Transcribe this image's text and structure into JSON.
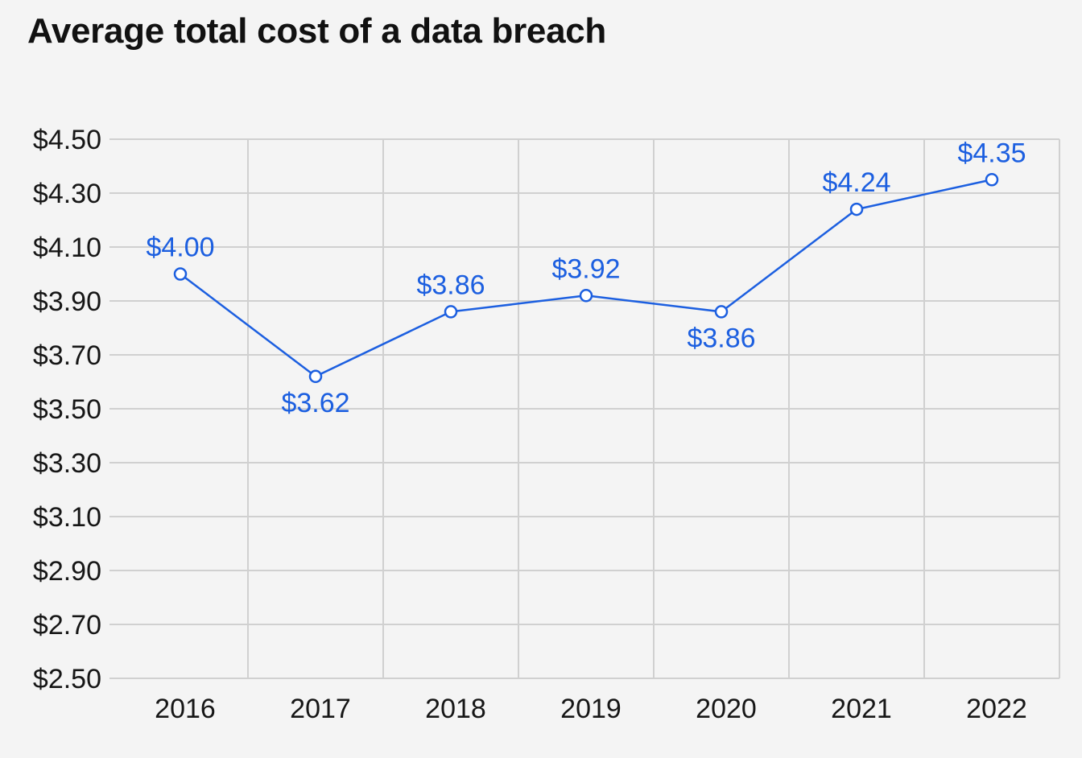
{
  "colors": {
    "background": "#f4f4f4",
    "grid": "#d0d0d0",
    "series": "#1c5fe0",
    "text": "#161616"
  },
  "chart_data": {
    "type": "line",
    "title": "Average total cost of a data breach",
    "xlabel": "",
    "ylabel": "",
    "categories": [
      "2016",
      "2017",
      "2018",
      "2019",
      "2020",
      "2021",
      "2022"
    ],
    "series": [
      {
        "values": [
          4.0,
          3.62,
          3.86,
          3.92,
          3.86,
          4.24,
          4.35
        ],
        "labels": [
          "$4.00",
          "$3.62",
          "$3.86",
          "$3.92",
          "$3.86",
          "$4.24",
          "$4.35"
        ],
        "label_positions": [
          "above",
          "below",
          "above",
          "above",
          "below",
          "above",
          "above"
        ]
      }
    ],
    "ylim": [
      2.5,
      4.5
    ],
    "y_ticks": [
      4.5,
      4.3,
      4.1,
      3.9,
      3.7,
      3.5,
      3.3,
      3.1,
      2.9,
      2.7,
      2.5
    ],
    "y_tick_labels": [
      "$4.50",
      "$4.30",
      "$4.10",
      "$3.90",
      "$3.70",
      "$3.50",
      "$3.30",
      "$3.10",
      "$2.90",
      "$2.70",
      "$2.50"
    ],
    "grid": true,
    "marker": "hollow-circle"
  }
}
